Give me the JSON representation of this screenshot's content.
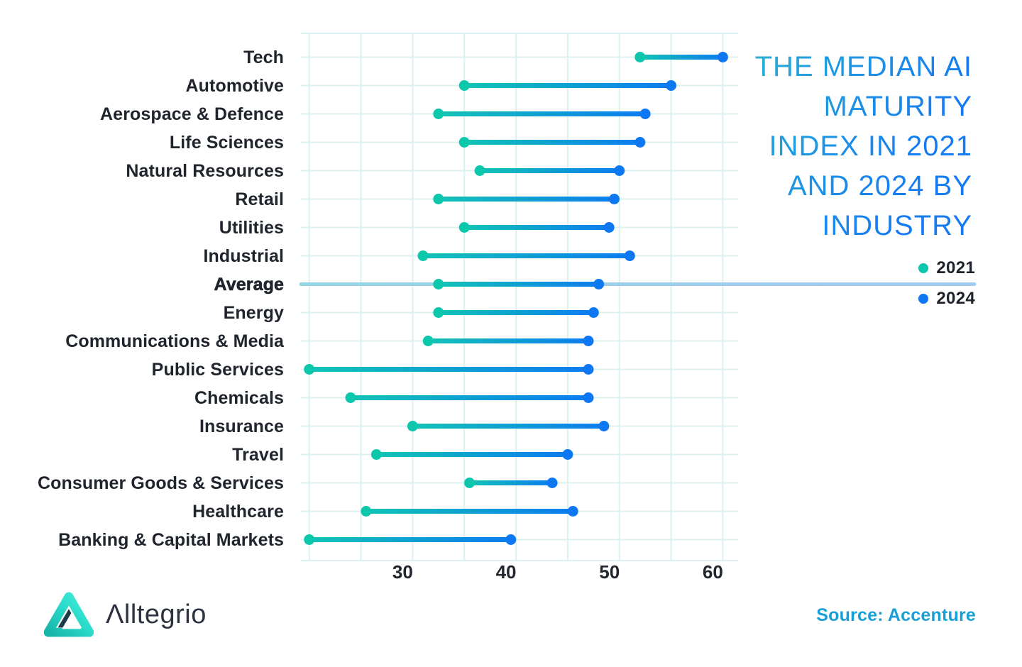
{
  "title": {
    "full": "THE MEDIAN AI MATURITY INDEX IN 2021 AND 2024 BY INDUSTRY",
    "lines": [
      "THE MEDIAN AI",
      "MATURITY",
      "INDEX IN 2021",
      "AND 2024 BY",
      "INDUSTRY"
    ]
  },
  "legend": [
    {
      "label": "2021",
      "color": "#0cc7ab"
    },
    {
      "label": "2024",
      "color": "#0d78f2"
    }
  ],
  "source": "Source: Accenture",
  "brand": {
    "name": "Alltegrio",
    "display": "Λlltegrio"
  },
  "colors": {
    "dot_2021": "#0cc7ab",
    "dot_2024": "#0d78f2",
    "line_gradient": [
      "#12c4b4",
      "#0b7cf0"
    ],
    "avg_line_gradient": [
      "#96d5e3",
      "#a2caf1"
    ],
    "grid": "#dcf1f1",
    "label_dark": "#20242d",
    "title_gradient": [
      "#2fcac0",
      "#157bf2"
    ],
    "source_blue": "#18a0d6",
    "brand_icon": [
      "#47ecdb",
      "#16b5a8",
      "#1d3a47"
    ]
  },
  "chart_data": {
    "type": "dumbbell",
    "title": "THE MEDIAN AI MATURITY INDEX IN 2021 AND 2024 BY INDUSTRY",
    "categories": [
      "Tech",
      "Automotive",
      "Aerospace & Defence",
      "Life Sciences",
      "Natural Resources",
      "Retail",
      "Utilities",
      "Industrial",
      "Average",
      "Energy",
      "Communications & Media",
      "Public Services",
      "Chemicals",
      "Insurance",
      "Travel",
      "Consumer Goods & Services",
      "Healthcare",
      "Banking & Capital Markets"
    ],
    "series": [
      {
        "name": "2021",
        "color": "#0cc7ab",
        "values": [
          52,
          35,
          32.5,
          35,
          36.5,
          32.5,
          35,
          31,
          32.5,
          32.5,
          31.5,
          20,
          24,
          30,
          26.5,
          35.5,
          25.5,
          20
        ]
      },
      {
        "name": "2024",
        "color": "#0d78f2",
        "values": [
          60,
          55,
          52.5,
          52,
          50,
          49.5,
          49,
          51,
          48,
          47.5,
          47,
          47,
          47,
          48.5,
          45,
          43.5,
          45.5,
          39.5
        ]
      }
    ],
    "xlabel": "",
    "ylabel": "",
    "xticks": [
      30,
      40,
      50,
      60
    ],
    "grid_step": 5,
    "xlim": [
      19.2,
      61.5
    ],
    "grid": true,
    "legend_position": "right",
    "highlight_category": "Average",
    "bold_category": "Average"
  }
}
